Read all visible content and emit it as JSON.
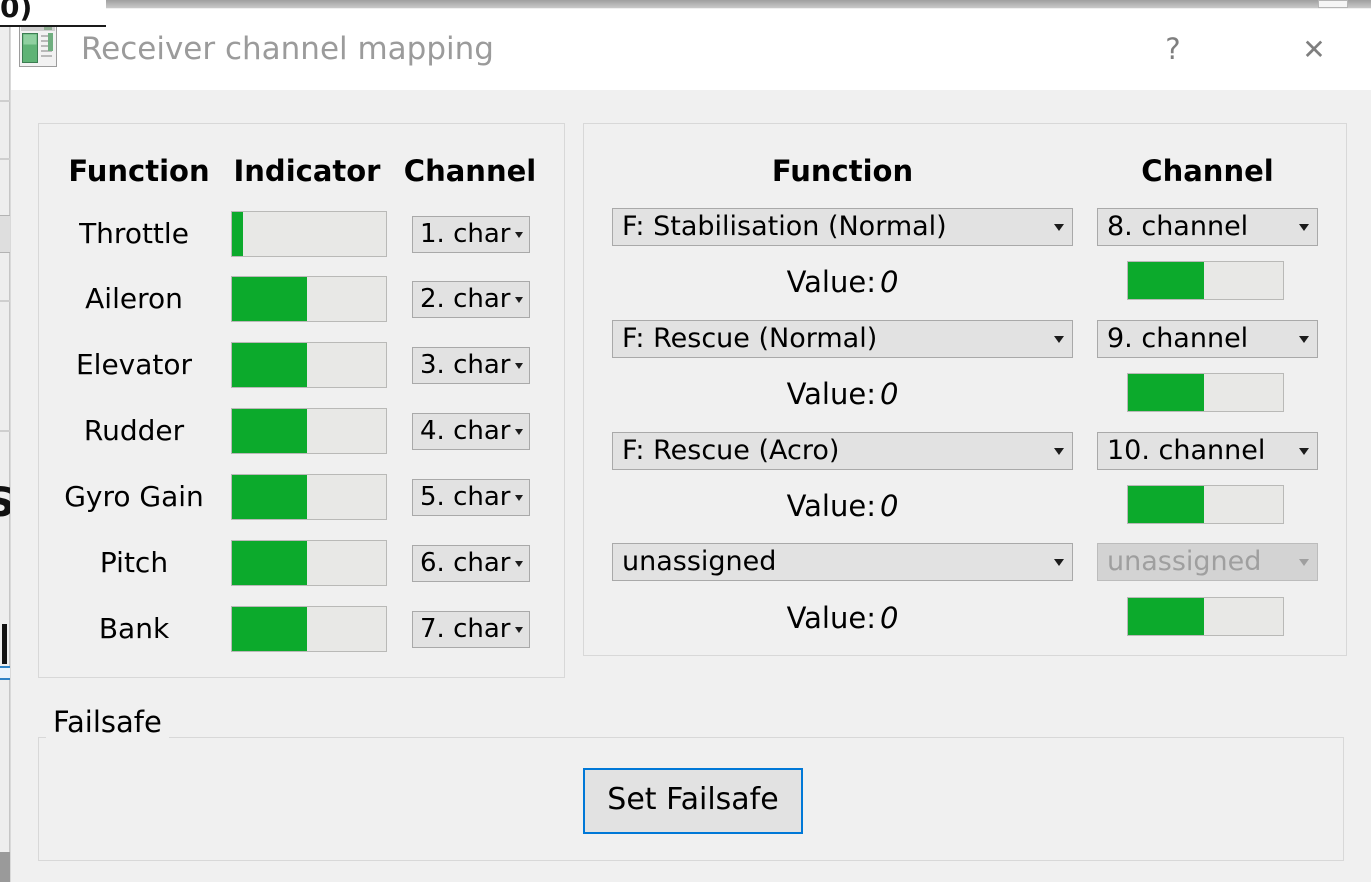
{
  "window": {
    "title": "Receiver channel mapping",
    "help_label": "?",
    "close_label": "✕"
  },
  "colors": {
    "indicator_green": "#0caa2c",
    "focus_blue": "#0078d7",
    "title_text_gray": "#9b9b9b",
    "dialog_background": "#f0f0f0"
  },
  "left_panel": {
    "headers": [
      "Function",
      "Indicator",
      "Channel"
    ],
    "rows": [
      {
        "function": "Throttle",
        "indicator_pct": 7,
        "channel": "1. char"
      },
      {
        "function": "Aileron",
        "indicator_pct": 49,
        "channel": "2. char"
      },
      {
        "function": "Elevator",
        "indicator_pct": 49,
        "channel": "3. char"
      },
      {
        "function": "Rudder",
        "indicator_pct": 49,
        "channel": "4. char"
      },
      {
        "function": "Gyro Gain",
        "indicator_pct": 49,
        "channel": "5. char"
      },
      {
        "function": "Pitch",
        "indicator_pct": 49,
        "channel": "6. char"
      },
      {
        "function": "Bank",
        "indicator_pct": 49,
        "channel": "7. char"
      }
    ]
  },
  "right_panel": {
    "headers": [
      "Function",
      "Channel"
    ],
    "rows": [
      {
        "function": "F: Stabilisation (Normal)",
        "channel": "8. channel",
        "channel_disabled": false,
        "value_label": "Value:",
        "value": "0",
        "indicator_pct": 49
      },
      {
        "function": "F: Rescue (Normal)",
        "channel": "9. channel",
        "channel_disabled": false,
        "value_label": "Value:",
        "value": "0",
        "indicator_pct": 49
      },
      {
        "function": "F: Rescue (Acro)",
        "channel": "10. channel",
        "channel_disabled": false,
        "value_label": "Value:",
        "value": "0",
        "indicator_pct": 49
      },
      {
        "function": "unassigned",
        "channel": "unassigned",
        "channel_disabled": true,
        "value_label": "Value:",
        "value": "0",
        "indicator_pct": 49
      }
    ]
  },
  "failsafe": {
    "label": "Failsafe",
    "button_label": "Set Failsafe"
  },
  "background_window": {
    "top_text_fragment": "0)",
    "side_text_fragment": "S"
  }
}
